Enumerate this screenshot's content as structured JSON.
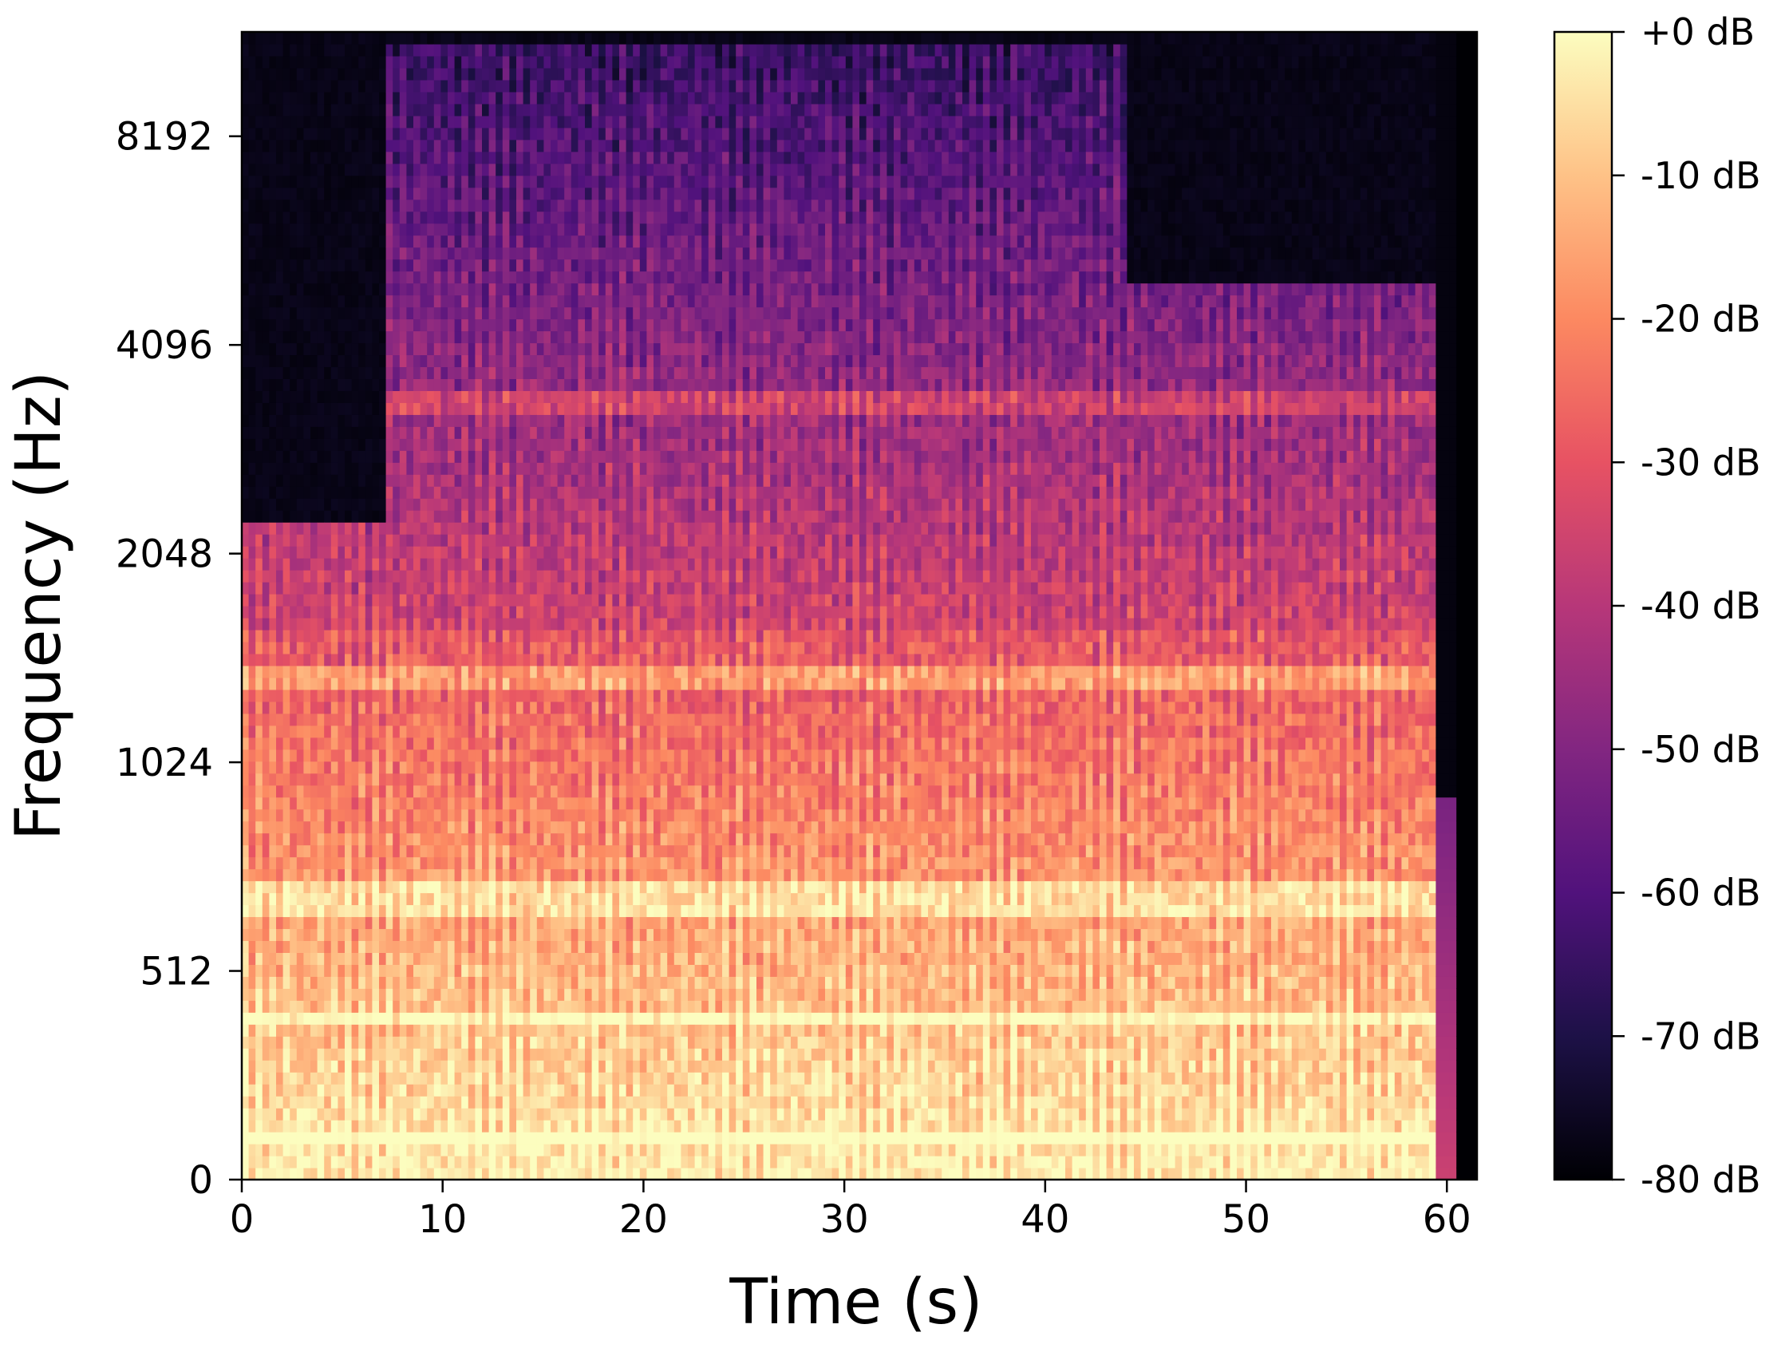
{
  "chart_data": {
    "type": "heatmap",
    "title": "",
    "xlabel": "Time (s)",
    "ylabel": "Frequency (Hz)",
    "xlim": [
      0,
      61.5
    ],
    "x_ticks": [
      0,
      10,
      20,
      30,
      40,
      50,
      60
    ],
    "x_tick_labels": [
      "0",
      "10",
      "20",
      "30",
      "40",
      "50",
      "60"
    ],
    "y_scale": "log-like (mel)",
    "y_ticks": [
      0,
      512,
      1024,
      2048,
      4096,
      8192
    ],
    "y_tick_labels": [
      "0",
      "512",
      "1024",
      "2048",
      "4096",
      "8192"
    ],
    "colormap": "magma",
    "colorbar": {
      "range_db": [
        -80,
        0
      ],
      "ticks": [
        0,
        -10,
        -20,
        -30,
        -40,
        -50,
        -60,
        -70,
        -80
      ],
      "tick_labels": [
        "+0 dB",
        "-10 dB",
        "-20 dB",
        "-30 dB",
        "-40 dB",
        "-50 dB",
        "-60 dB",
        "-70 dB",
        "-80 dB"
      ],
      "colors": [
        "#000004",
        "#1d1147",
        "#51127c",
        "#822681",
        "#b73779",
        "#e75263",
        "#fc8961",
        "#fec287",
        "#fcfdbf"
      ]
    },
    "audio_end_s": 60.5,
    "segments": [
      {
        "start_s": 0,
        "end_s": 7.3,
        "top_hz": 2300
      },
      {
        "start_s": 7.3,
        "end_s": 14.6,
        "top_hz": 11000
      },
      {
        "start_s": 14.6,
        "end_s": 44.2,
        "top_hz": 11000
      },
      {
        "start_s": 44.2,
        "end_s": 59.3,
        "top_hz": 5000
      }
    ],
    "bright_bands_hz": [
      100,
      200,
      400,
      650,
      1350,
      3400
    ]
  }
}
